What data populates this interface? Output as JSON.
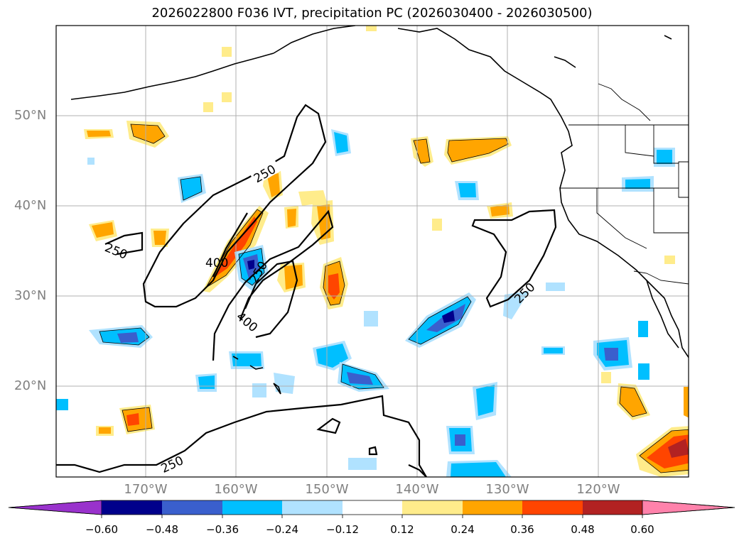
{
  "title": "2026022800 F036 IVT, precipitation PC (2026030400 - 2026030500)",
  "lat_labels": [
    "50°N",
    "40°N",
    "30°N",
    "20°N"
  ],
  "lon_labels": [
    "170°W",
    "160°W",
    "150°W",
    "140°W",
    "130°W",
    "120°W"
  ],
  "contour_labels": [
    "250",
    "250",
    "400",
    "250",
    "400",
    "250",
    "250"
  ],
  "colorbar": {
    "ticks": [
      "−0.60",
      "−0.48",
      "−0.36",
      "−0.24",
      "−0.12",
      "0.12",
      "0.24",
      "0.36",
      "0.48",
      "0.60"
    ],
    "colors": [
      "#9932cc",
      "#00008b",
      "#3a5fcd",
      "#00bfff",
      "#b0e2ff",
      "#ffffff",
      "#ffec8b",
      "#ffa500",
      "#ff4500",
      "#b22222",
      "#ff82ab"
    ]
  },
  "colors": {
    "coast": "#000000",
    "grid": "#b0b0b0",
    "contour": "#000000"
  }
}
